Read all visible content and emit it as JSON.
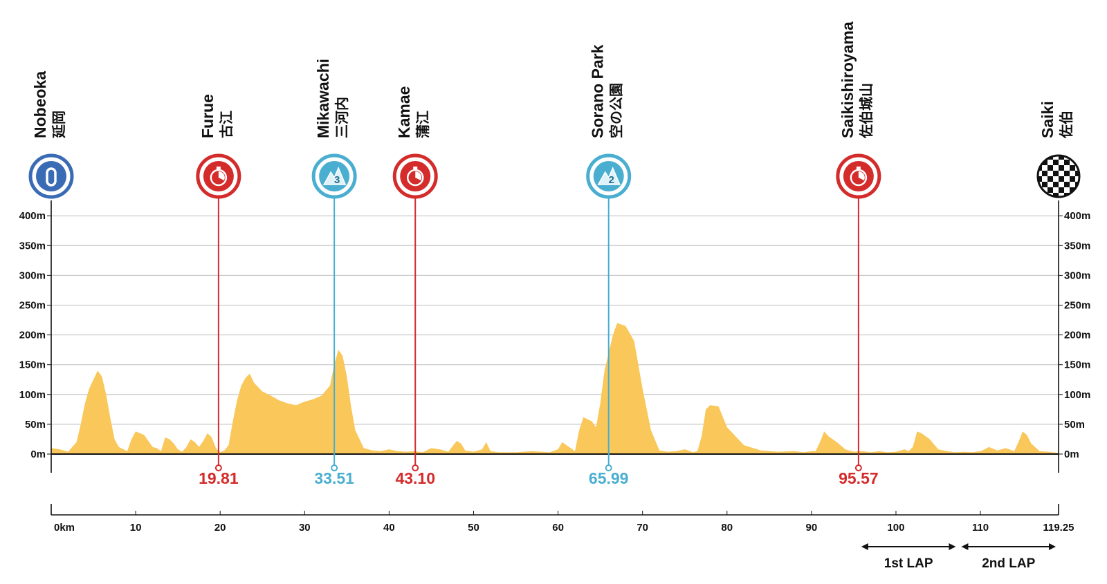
{
  "chart_data": {
    "type": "area",
    "x_unit": "km",
    "y_unit": "m",
    "xlim": [
      0,
      119.25
    ],
    "ylim": [
      0,
      400
    ],
    "grid": true,
    "fill_color": "#f9c75a",
    "y_ticks": [
      {
        "value": 0,
        "label": "0m"
      },
      {
        "value": 50,
        "label": "50m"
      },
      {
        "value": 100,
        "label": "100m"
      },
      {
        "value": 150,
        "label": "150m"
      },
      {
        "value": 200,
        "label": "200m"
      },
      {
        "value": 250,
        "label": "250m"
      },
      {
        "value": 300,
        "label": "300m"
      },
      {
        "value": 350,
        "label": "350m"
      },
      {
        "value": 400,
        "label": "400m"
      }
    ],
    "x_ticks": [
      {
        "value": 0,
        "label": "0km"
      },
      {
        "value": 10,
        "label": "10"
      },
      {
        "value": 20,
        "label": "20"
      },
      {
        "value": 30,
        "label": "30"
      },
      {
        "value": 40,
        "label": "40"
      },
      {
        "value": 50,
        "label": "50"
      },
      {
        "value": 60,
        "label": "60"
      },
      {
        "value": 70,
        "label": "70"
      },
      {
        "value": 80,
        "label": "80"
      },
      {
        "value": 90,
        "label": "90"
      },
      {
        "value": 100,
        "label": "100"
      },
      {
        "value": 110,
        "label": "110"
      },
      {
        "value": 119.25,
        "label": "119.25"
      }
    ],
    "elevation": {
      "x": [
        0,
        1,
        2,
        3,
        3.5,
        4,
        4.5,
        5,
        5.5,
        6,
        6.5,
        7,
        7.5,
        8,
        9,
        9.5,
        10,
        10.5,
        11,
        11.5,
        12,
        12.5,
        13,
        13.5,
        14,
        14.5,
        15,
        15.5,
        16,
        16.5,
        17,
        17.5,
        18,
        18.5,
        19,
        19.5,
        20,
        20.5,
        21,
        21.5,
        22,
        22.5,
        23,
        23.5,
        24,
        25,
        26,
        27,
        28,
        29,
        30,
        31,
        32,
        33,
        33.5,
        34,
        34.5,
        35,
        35.5,
        36,
        37,
        38,
        39,
        40,
        41,
        42,
        43,
        44,
        45,
        46,
        47,
        48,
        48.5,
        49,
        50,
        51,
        51.5,
        52,
        53,
        55,
        57,
        58,
        59,
        60,
        60.5,
        61,
        61.5,
        62,
        62.5,
        63,
        64,
        64.5,
        65,
        65.5,
        66,
        66.5,
        67,
        68,
        69,
        70,
        71,
        72,
        73,
        74,
        75,
        76,
        76.5,
        77,
        77.5,
        78,
        79,
        80,
        82,
        84,
        86,
        88,
        89,
        89.5,
        90,
        90.5,
        91,
        91.5,
        92,
        93,
        94,
        95,
        96,
        97,
        98,
        99,
        100,
        101,
        101.5,
        102,
        102.5,
        103,
        104,
        105,
        106,
        107,
        108,
        109,
        110,
        110.5,
        111,
        112,
        113,
        114,
        114.5,
        115,
        115.5,
        116,
        117,
        118,
        119.25
      ],
      "y": [
        10,
        8,
        4,
        20,
        50,
        85,
        110,
        125,
        140,
        130,
        100,
        60,
        25,
        12,
        5,
        25,
        38,
        35,
        32,
        22,
        12,
        10,
        5,
        28,
        25,
        18,
        8,
        4,
        12,
        25,
        20,
        12,
        22,
        35,
        28,
        10,
        3,
        6,
        15,
        55,
        90,
        115,
        128,
        135,
        120,
        105,
        98,
        90,
        85,
        82,
        88,
        92,
        98,
        115,
        150,
        175,
        165,
        130,
        80,
        40,
        10,
        6,
        5,
        8,
        5,
        4,
        5,
        3,
        10,
        8,
        4,
        22,
        18,
        6,
        4,
        8,
        20,
        5,
        3,
        3,
        5,
        4,
        3,
        8,
        20,
        15,
        10,
        5,
        40,
        62,
        55,
        45,
        85,
        140,
        170,
        200,
        220,
        215,
        190,
        110,
        40,
        6,
        4,
        5,
        8,
        3,
        5,
        30,
        75,
        82,
        80,
        45,
        15,
        6,
        4,
        5,
        3,
        4,
        5,
        5,
        20,
        38,
        30,
        20,
        8,
        4,
        5,
        3,
        5,
        3,
        4,
        8,
        5,
        12,
        38,
        35,
        25,
        8,
        5,
        3,
        4,
        3,
        5,
        8,
        12,
        6,
        10,
        5,
        20,
        38,
        32,
        18,
        5,
        4,
        2
      ]
    },
    "markers": [
      {
        "km": 0,
        "name": "Nobeoka",
        "name_jp": "延岡",
        "icon": "start-km0-icon",
        "color": "#3a6bb5"
      },
      {
        "km": 19.81,
        "name": "Furue",
        "name_jp": "古江",
        "icon": "stopwatch-icon",
        "color": "#d42b2b",
        "label": "19.81"
      },
      {
        "km": 33.51,
        "name": "Mikawachi",
        "name_jp": "三河内",
        "icon": "mountain-cat3-icon",
        "color": "#4aaed0",
        "label": "33.51",
        "badge": "3"
      },
      {
        "km": 43.1,
        "name": "Kamae",
        "name_jp": "蒲江",
        "icon": "stopwatch-icon",
        "color": "#d42b2b",
        "label": "43.10"
      },
      {
        "km": 65.99,
        "name": "Sorano Park",
        "name_jp": "空の公園",
        "icon": "mountain-cat2-icon",
        "color": "#4aaed0",
        "label": "65.99",
        "badge": "2"
      },
      {
        "km": 95.57,
        "name": "Saikishiroyama",
        "name_jp": "佐伯城山",
        "icon": "stopwatch-icon",
        "color": "#d42b2b",
        "label": "95.57"
      },
      {
        "km": 119.25,
        "name": "Saiki",
        "name_jp": "佐伯",
        "icon": "finish-flag-icon",
        "color": "#111111"
      }
    ],
    "laps": [
      {
        "label": "1st LAP",
        "from": 95.57,
        "to": 107.41
      },
      {
        "label": "2nd LAP",
        "from": 107.41,
        "to": 119.25
      }
    ]
  }
}
